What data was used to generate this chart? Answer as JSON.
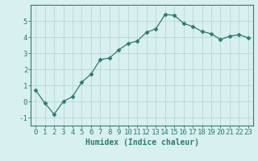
{
  "x": [
    0,
    1,
    2,
    3,
    4,
    5,
    6,
    7,
    8,
    9,
    10,
    11,
    12,
    13,
    14,
    15,
    16,
    17,
    18,
    19,
    20,
    21,
    22,
    23
  ],
  "y": [
    0.7,
    -0.1,
    -0.8,
    0.0,
    0.3,
    1.2,
    1.7,
    2.6,
    2.7,
    3.2,
    3.6,
    3.75,
    4.3,
    4.5,
    5.4,
    5.35,
    4.85,
    4.65,
    4.35,
    4.2,
    3.85,
    4.05,
    4.15,
    3.95
  ],
  "line_color": "#2d7d6e",
  "marker": "D",
  "marker_size": 2.5,
  "bg_color": "#d8f0f0",
  "grid_color": "#b8d8d8",
  "axis_color": "#2d7d6e",
  "xlabel": "Humidex (Indice chaleur)",
  "ylim": [
    -1.5,
    6.0
  ],
  "xlim": [
    -0.5,
    23.5
  ],
  "yticks": [
    -1,
    0,
    1,
    2,
    3,
    4,
    5
  ],
  "xticks": [
    0,
    1,
    2,
    3,
    4,
    5,
    6,
    7,
    8,
    9,
    10,
    11,
    12,
    13,
    14,
    15,
    16,
    17,
    18,
    19,
    20,
    21,
    22,
    23
  ],
  "xlabel_fontsize": 7,
  "tick_fontsize": 6.5
}
